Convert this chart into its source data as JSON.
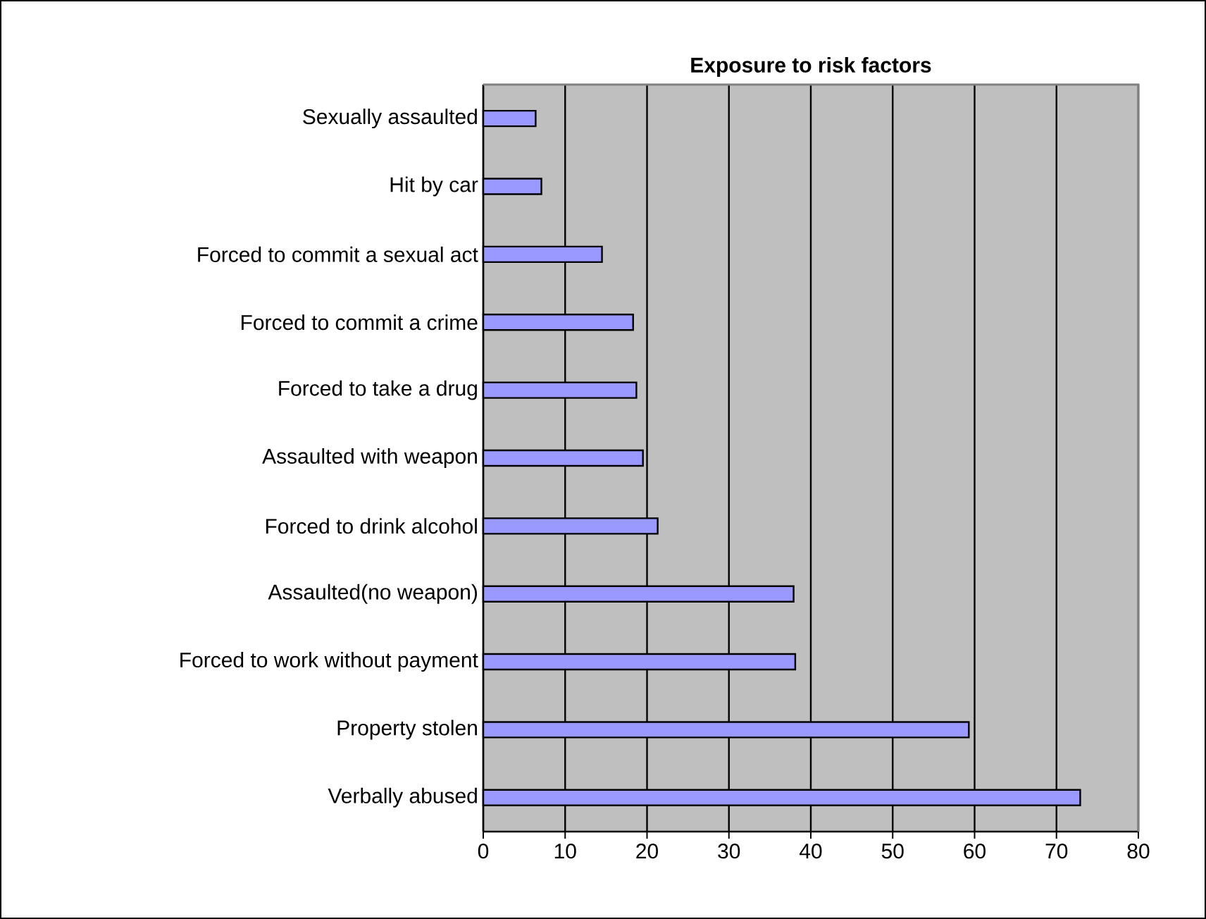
{
  "chart_data": {
    "type": "bar",
    "orientation": "horizontal",
    "title": "Exposure to risk factors",
    "categories": [
      "Sexually assaulted",
      "Hit by car",
      "Forced to commit a sexual act",
      "Forced to commit a crime",
      "Forced to take a drug",
      "Assaulted with weapon",
      "Forced to drink alcohol",
      "Assaulted(no weapon)",
      "Forced to work without payment",
      "Property stolen",
      "Verbally abused"
    ],
    "values": [
      6.4,
      7.1,
      14.5,
      18.3,
      18.7,
      19.5,
      21.3,
      37.9,
      38.1,
      59.3,
      72.9
    ],
    "color": "#9999ff",
    "xlim": [
      0,
      80
    ],
    "xticks": [
      0,
      10,
      20,
      30,
      40,
      50,
      60,
      70,
      80
    ],
    "grid": "x"
  }
}
